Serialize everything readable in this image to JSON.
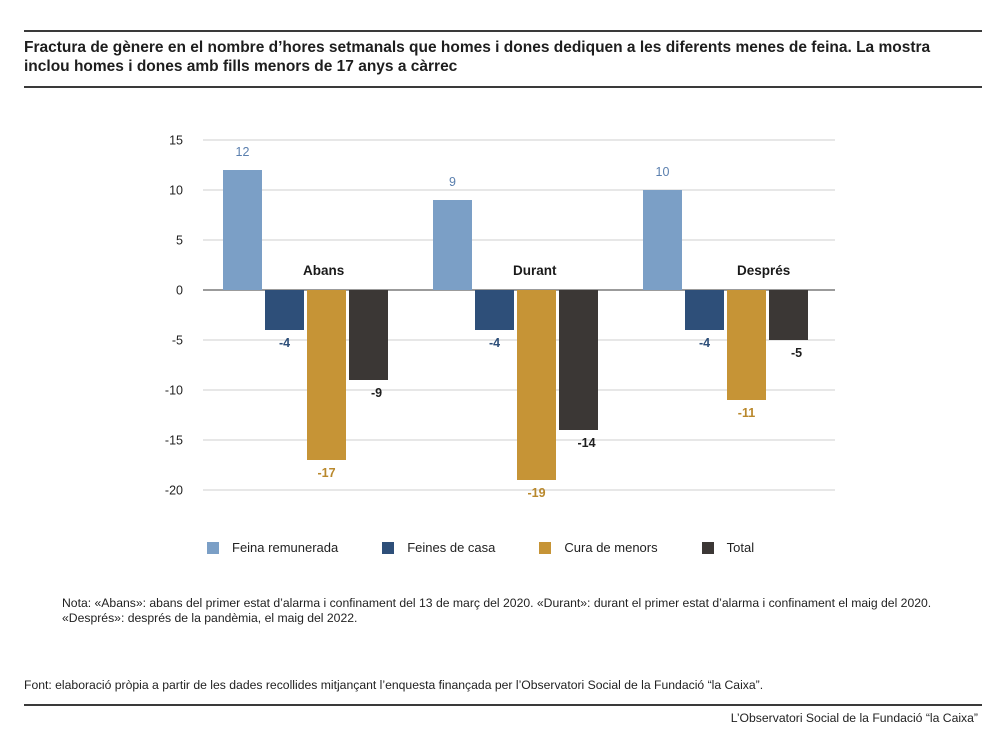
{
  "title": "Fractura de gènere en el nombre d’hores setmanals que homes i dones dediquen a les diferents menes de feina. La mostra inclou homes i dones amb fills menors de 17 anys a càrrec",
  "note": "Nota: «Abans»: abans del primer estat d’alarma i confinament del 13 de març del 2020. «Durant»: durant el primer estat d’alarma i confinament el maig del 2020. «Després»: després de la pandèmia, el maig del 2022.",
  "source": "Font: elaboració pròpia a partir de les dades recollides mitjançant l’enquesta finançada per l’Observatori Social de la Fundació “la Caixa”.",
  "credit": "L’Observatori Social de la Fundació “la Caixa”",
  "chart_data": {
    "type": "bar",
    "categories": [
      "Abans",
      "Durant",
      "Després"
    ],
    "series": [
      {
        "name": "Feina remunerada",
        "color": "#7b9fc6",
        "label_color": "#5a7fae",
        "values": [
          12,
          9,
          10
        ]
      },
      {
        "name": "Feines de casa",
        "color": "#2e4f79",
        "label_color": "#2e4f79",
        "values": [
          -4,
          -4,
          -4
        ]
      },
      {
        "name": "Cura de menors",
        "color": "#c69436",
        "label_color": "#b9882c",
        "values": [
          -17,
          -19,
          -11
        ]
      },
      {
        "name": "Total",
        "color": "#3b3735",
        "label_color": "#1e1e1e",
        "values": [
          -9,
          -14,
          -5
        ]
      }
    ],
    "yticks": [
      15,
      10,
      5,
      0,
      -5,
      -10,
      -15,
      -20
    ],
    "ylim": [
      -20,
      15
    ],
    "grid": true,
    "legend_position": "bottom"
  }
}
